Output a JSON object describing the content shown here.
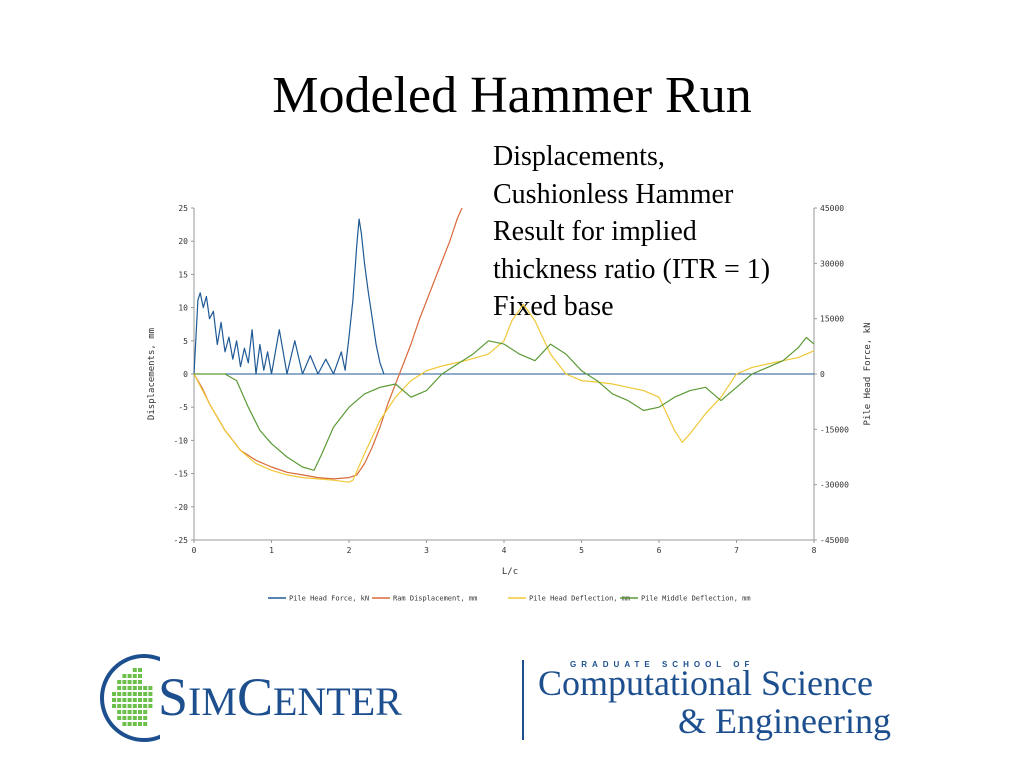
{
  "slide": {
    "title": "Modeled Hammer Run",
    "side_text": [
      "Displacements,",
      "Cushionless Hammer",
      "Result for implied",
      "thickness ratio (ITR = 1)",
      "Fixed base"
    ]
  },
  "logo": {
    "name_first": "S",
    "name_small_1": "IM",
    "name_mid": "C",
    "name_small_2": "ENTER",
    "school_label": "GRADUATE SCHOOL OF",
    "line1": "Computational Science",
    "line2": "& Engineering",
    "color": "#1d4f8f",
    "globe_color": "#6cbf4a"
  },
  "chart_data": {
    "type": "line",
    "xlabel": "L/c",
    "ylabel": "Displacements, mm",
    "y2label": "Pile Head Force, kN",
    "xlim": [
      0,
      8
    ],
    "ylim": [
      -25,
      25
    ],
    "y2lim": [
      -45000,
      45000
    ],
    "x_ticks": [
      "0",
      "1",
      "2",
      "3",
      "4",
      "5",
      "6",
      "7",
      "8"
    ],
    "y_ticks": [
      "25",
      "20",
      "15",
      "10",
      "5",
      "0",
      "-5",
      "-10",
      "-15",
      "-20",
      "-25"
    ],
    "y2_ticks": [
      "45000",
      "30000",
      "15000",
      "0",
      "-15000",
      "-30000",
      "-45000"
    ],
    "legend": [
      "Pile Head Force, kN",
      "Ram Displacement, mm",
      "Pile Head Deflection, mm",
      "Pile Middle Deflection, mm"
    ],
    "series": [
      {
        "name": "Pile Head Force, kN",
        "color": "#1f5a96",
        "axis": "y2",
        "x": [
          0,
          0.05,
          0.08,
          0.12,
          0.16,
          0.2,
          0.25,
          0.3,
          0.35,
          0.4,
          0.45,
          0.5,
          0.55,
          0.6,
          0.65,
          0.7,
          0.75,
          0.8,
          0.85,
          0.9,
          0.95,
          1.0,
          1.1,
          1.2,
          1.3,
          1.4,
          1.5,
          1.6,
          1.7,
          1.8,
          1.9,
          1.95,
          2.0,
          2.05,
          2.1,
          2.13,
          2.16,
          2.2,
          2.25,
          2.3,
          2.35,
          2.4,
          2.45
        ],
        "y": [
          0,
          20000,
          22000,
          18000,
          21000,
          15000,
          17000,
          8000,
          14000,
          6000,
          10000,
          4000,
          9000,
          2000,
          7000,
          3000,
          12000,
          0,
          8000,
          1000,
          6000,
          0,
          12000,
          0,
          9000,
          0,
          5000,
          0,
          4000,
          0,
          6000,
          1000,
          10000,
          20000,
          35000,
          42000,
          38000,
          30000,
          22000,
          15000,
          8000,
          3000,
          0
        ]
      },
      {
        "name": "Ram Displacement, mm",
        "color": "#d86a3a",
        "axis": "y",
        "x": [
          0,
          0.1,
          0.2,
          0.3,
          0.4,
          0.5,
          0.6,
          0.8,
          1.0,
          1.2,
          1.4,
          1.6,
          1.8,
          2.0,
          2.1,
          2.2,
          2.3,
          2.4,
          2.5,
          2.6,
          2.7,
          2.8,
          2.9,
          3.0,
          3.1,
          3.2,
          3.3,
          3.4,
          3.46
        ],
        "y": [
          0,
          -2,
          -4.5,
          -6.5,
          -8.5,
          -10,
          -11.5,
          -13,
          -14,
          -14.8,
          -15.2,
          -15.6,
          -15.8,
          -15.6,
          -15.2,
          -13.5,
          -11,
          -8,
          -4.5,
          -1.5,
          1.5,
          4.5,
          8,
          11,
          14,
          17,
          20,
          23.5,
          25
        ]
      },
      {
        "name": "Pile Head Deflection, mm",
        "color": "#f0c838",
        "axis": "y",
        "x": [
          0,
          0.2,
          0.4,
          0.6,
          0.8,
          1.0,
          1.2,
          1.4,
          1.6,
          1.8,
          2.0,
          2.05,
          2.2,
          2.4,
          2.6,
          2.8,
          3.0,
          3.2,
          3.5,
          3.8,
          4.0,
          4.1,
          4.25,
          4.4,
          4.6,
          4.8,
          5.0,
          5.2,
          5.4,
          5.6,
          5.8,
          6.0,
          6.1,
          6.2,
          6.3,
          6.4,
          6.6,
          6.8,
          7.0,
          7.2,
          7.4,
          7.6,
          7.8,
          8.0
        ],
        "y": [
          0,
          -4.5,
          -8.5,
          -11.5,
          -13.5,
          -14.5,
          -15.2,
          -15.6,
          -15.8,
          -16,
          -16.3,
          -16,
          -12,
          -7,
          -3.5,
          -1,
          0.5,
          1.2,
          2,
          3,
          5,
          8,
          10.5,
          8,
          3,
          0,
          -1,
          -1.2,
          -1.5,
          -2,
          -2.5,
          -3.5,
          -6,
          -8.5,
          -10.3,
          -9,
          -6,
          -3.5,
          0,
          1,
          1.5,
          2,
          2.5,
          3.5
        ]
      },
      {
        "name": "Pile Middle Deflection, mm",
        "color": "#5c9a36",
        "axis": "y",
        "x": [
          0,
          0.2,
          0.4,
          0.55,
          0.7,
          0.85,
          1.0,
          1.2,
          1.4,
          1.55,
          1.65,
          1.8,
          2.0,
          2.2,
          2.4,
          2.6,
          2.8,
          3.0,
          3.2,
          3.4,
          3.6,
          3.8,
          4.0,
          4.2,
          4.4,
          4.6,
          4.8,
          5.0,
          5.2,
          5.4,
          5.6,
          5.8,
          6.0,
          6.2,
          6.4,
          6.6,
          6.8,
          7.0,
          7.2,
          7.4,
          7.6,
          7.8,
          7.9,
          8.0
        ],
        "y": [
          0,
          0,
          0,
          -1,
          -5,
          -8.5,
          -10.5,
          -12.5,
          -14,
          -14.5,
          -12,
          -8,
          -5,
          -3,
          -2,
          -1.5,
          -3.5,
          -2.5,
          0,
          1.5,
          3,
          5,
          4.5,
          3,
          2,
          4.5,
          3,
          0.5,
          -1,
          -3,
          -4,
          -5.5,
          -5,
          -3.5,
          -2.5,
          -2,
          -4,
          -2,
          0,
          1,
          2,
          4,
          5.5,
          4.5
        ]
      }
    ]
  }
}
